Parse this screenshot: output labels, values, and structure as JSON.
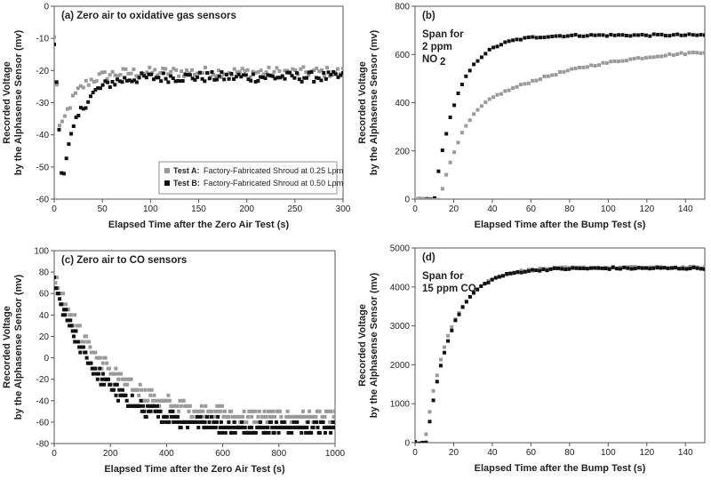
{
  "chart_data": [
    {
      "type": "scatter",
      "panel_label": "(a) Zero air to oxidative gas sensors",
      "xlabel": "Elapsed Time after the Zero Air Test (s)",
      "ylabel": [
        "Recorded Voltage",
        "by the Alphasense Sensor (mv)"
      ],
      "xlim": [
        0,
        300
      ],
      "ylim": [
        -60,
        0
      ],
      "xticks": [
        0,
        50,
        100,
        150,
        200,
        250,
        300
      ],
      "yticks": [
        -60,
        -50,
        -40,
        -30,
        -20,
        -10,
        0
      ],
      "legend": {
        "position": "lower-right",
        "entries": [
          {
            "label_bold": "Test A:",
            "label": "Factory-Fabricated Shroud at 0.25 Lpm",
            "color": "#9a9a9a"
          },
          {
            "label_bold": "Test B:",
            "label": "Factory-Fabricated Shroud at 0.50 Lpm",
            "color": "#111111"
          }
        ]
      },
      "series": [
        {
          "color": "#9a9a9a",
          "kind": "exp",
          "params": {
            "y0": -10,
            "dip": -40,
            "dipAt": 6,
            "plateau": -20.5,
            "tau": 16,
            "noise": 1.6
          },
          "x": [
            0,
            300
          ],
          "n": 110
        },
        {
          "color": "#111111",
          "kind": "exp",
          "params": {
            "y0": -11,
            "dip": -54,
            "dipAt": 8,
            "plateau": -22,
            "tau": 18,
            "noise": 1.6
          },
          "x": [
            0,
            300
          ],
          "n": 120
        }
      ]
    },
    {
      "type": "scatter",
      "panel_label": "(b)",
      "annotation": [
        "Span for",
        "2 ppm",
        "NO",
        "2"
      ],
      "xlabel": "Elapsed Time after the Bump Test (s)",
      "ylabel": [
        "Recorded Voltage",
        "by the Alphasense Sensor (mv)"
      ],
      "xlim": [
        0,
        150
      ],
      "ylim": [
        0,
        800
      ],
      "xticks": [
        0,
        20,
        40,
        60,
        80,
        100,
        120,
        140
      ],
      "yticks": [
        0,
        200,
        400,
        600,
        800
      ],
      "series": [
        {
          "color": "#111111",
          "kind": "rise",
          "params": {
            "delay": 10,
            "final": 680,
            "tau": 12,
            "noise": 4
          },
          "x": [
            0,
            150
          ],
          "n": 75
        },
        {
          "color": "#9a9a9a",
          "kind": "rise2",
          "params": {
            "delay": 13,
            "final": 640,
            "tau": 25,
            "noise": 4
          },
          "x": [
            0,
            150
          ],
          "n": 75
        }
      ]
    },
    {
      "type": "scatter",
      "panel_label": "(c) Zero air to CO sensors",
      "xlabel": "Elapsed Time after the Zero Air Test (s)",
      "ylabel": [
        "Recorded Voltage",
        "by the Alphasense Sensor (mv)"
      ],
      "xlim": [
        0,
        1000
      ],
      "ylim": [
        -80,
        100
      ],
      "xticks": [
        0,
        200,
        400,
        600,
        800,
        1000
      ],
      "yticks": [
        -80,
        -60,
        -40,
        -20,
        0,
        20,
        40,
        60,
        80,
        100
      ],
      "series": [
        {
          "color": "#9a9a9a",
          "kind": "decay",
          "params": {
            "y0": 75,
            "final": -58,
            "tau": 190,
            "noise": 5,
            "step": 5
          },
          "x": [
            0,
            1000
          ],
          "n": 220
        },
        {
          "color": "#111111",
          "kind": "decay",
          "params": {
            "y0": 70,
            "final": -66,
            "tau": 160,
            "noise": 5,
            "step": 5
          },
          "x": [
            0,
            1000
          ],
          "n": 260
        }
      ]
    },
    {
      "type": "scatter",
      "panel_label": "(d)",
      "annotation": [
        "Span for",
        "15 ppm CO"
      ],
      "xlabel": "Elapsed Time after the Bump Test (s)",
      "ylabel": [
        "Recorded Voltage",
        "by the Alphasense Sensor (mv)"
      ],
      "xlim": [
        0,
        150
      ],
      "ylim": [
        0,
        5000
      ],
      "xticks": [
        0,
        20,
        40,
        60,
        80,
        100,
        120,
        140
      ],
      "yticks": [
        0,
        1000,
        2000,
        3000,
        4000,
        5000
      ],
      "series": [
        {
          "color": "#9a9a9a",
          "kind": "rise",
          "params": {
            "delay": 5,
            "final": 4500,
            "tau": 13,
            "noise": 25
          },
          "x": [
            0,
            150
          ],
          "n": 80
        },
        {
          "color": "#111111",
          "kind": "rise",
          "params": {
            "delay": 6,
            "final": 4480,
            "tau": 12.5,
            "noise": 25
          },
          "x": [
            0,
            150
          ],
          "n": 80
        }
      ]
    }
  ]
}
